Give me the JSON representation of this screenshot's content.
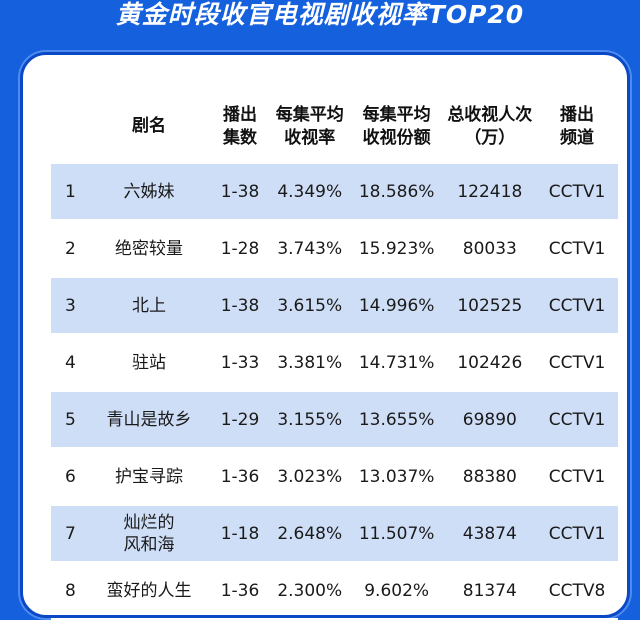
{
  "banner": {
    "title": "黄金时段收官电视剧收视率TOP20"
  },
  "table": {
    "headers": {
      "rank": "",
      "name": "剧名",
      "episodes": "播出\n集数",
      "avg_rating": "每集平均\n收视率",
      "avg_share": "每集平均\n收视份额",
      "total_views": "总收视人次\n（万）",
      "channel": "播出\n频道"
    },
    "rows": [
      {
        "rank": "1",
        "name": "六姊妹",
        "episodes": "1-38",
        "avg_rating": "4.349%",
        "avg_share": "18.586%",
        "total_views": "122418",
        "channel": "CCTV1"
      },
      {
        "rank": "2",
        "name": "绝密较量",
        "episodes": "1-28",
        "avg_rating": "3.743%",
        "avg_share": "15.923%",
        "total_views": "80033",
        "channel": "CCTV1"
      },
      {
        "rank": "3",
        "name": "北上",
        "episodes": "1-38",
        "avg_rating": "3.615%",
        "avg_share": "14.996%",
        "total_views": "102525",
        "channel": "CCTV1"
      },
      {
        "rank": "4",
        "name": "驻站",
        "episodes": "1-33",
        "avg_rating": "3.381%",
        "avg_share": "14.731%",
        "total_views": "102426",
        "channel": "CCTV1"
      },
      {
        "rank": "5",
        "name": "青山是故乡",
        "episodes": "1-29",
        "avg_rating": "3.155%",
        "avg_share": "13.655%",
        "total_views": "69890",
        "channel": "CCTV1"
      },
      {
        "rank": "6",
        "name": "护宝寻踪",
        "episodes": "1-36",
        "avg_rating": "3.023%",
        "avg_share": "13.037%",
        "total_views": "88380",
        "channel": "CCTV1"
      },
      {
        "rank": "7",
        "name": "灿烂的\n风和海",
        "episodes": "1-18",
        "avg_rating": "2.648%",
        "avg_share": "11.507%",
        "total_views": "43874",
        "channel": "CCTV1"
      },
      {
        "rank": "8",
        "name": "蛮好的人生",
        "episodes": "1-36",
        "avg_rating": "2.300%",
        "avg_share": "9.602%",
        "total_views": "81374",
        "channel": "CCTV8"
      }
    ]
  },
  "colors": {
    "background": "#1560dd",
    "panel": "#ffffff",
    "stripe": "#cfdef7",
    "text": "#1a1a1a"
  }
}
